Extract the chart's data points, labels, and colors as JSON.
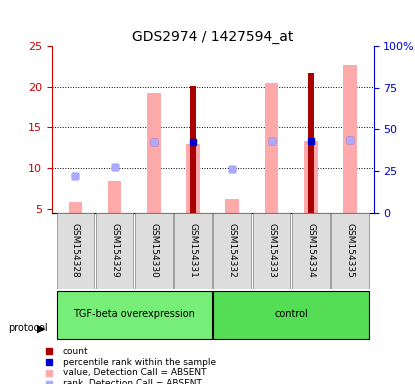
{
  "title": "GDS2974 / 1427594_at",
  "samples": [
    "GSM154328",
    "GSM154329",
    "GSM154330",
    "GSM154331",
    "GSM154332",
    "GSM154333",
    "GSM154334",
    "GSM154335"
  ],
  "groups": [
    "TGF-beta overexpression",
    "TGF-beta overexpression",
    "TGF-beta overexpression",
    "TGF-beta overexpression",
    "control",
    "control",
    "control",
    "control"
  ],
  "group_colors": {
    "TGF-beta overexpression": "#66ee66",
    "control": "#44dd44"
  },
  "ylim_left": [
    4.5,
    25
  ],
  "ylim_right": [
    0,
    100
  ],
  "yticks_left": [
    5,
    10,
    15,
    20,
    25
  ],
  "yticks_right": [
    0,
    25,
    50,
    75,
    100
  ],
  "ytick_labels_right": [
    "0",
    "25",
    "50",
    "75",
    "100%"
  ],
  "pink_bar_values": [
    5.8,
    8.4,
    19.2,
    13.0,
    6.2,
    20.5,
    13.3,
    22.7
  ],
  "red_bar_values": [
    0,
    0,
    0,
    20.1,
    0,
    0,
    21.7,
    0
  ],
  "blue_dot_values": [
    9.0,
    10.1,
    13.2,
    13.2,
    9.9,
    13.3,
    13.3,
    13.4
  ],
  "light_blue_dot_values": [
    null,
    null,
    null,
    null,
    null,
    null,
    null,
    null
  ],
  "pink_color": "#ffaaaa",
  "red_color": "#aa0000",
  "blue_color": "#0000cc",
  "light_blue_color": "#aaaaff",
  "background_color": "#ffffff",
  "grid_color": "#000000",
  "left_tick_color": "#cc0000",
  "right_tick_color": "#0000cc",
  "group1_label": "TGF-beta overexpression",
  "group2_label": "control",
  "protocol_label": "protocol",
  "legend_items": [
    "count",
    "percentile rank within the sample",
    "value, Detection Call = ABSENT",
    "rank, Detection Call = ABSENT"
  ],
  "legend_colors": [
    "#aa0000",
    "#0000cc",
    "#ffaaaa",
    "#aaaaff"
  ]
}
